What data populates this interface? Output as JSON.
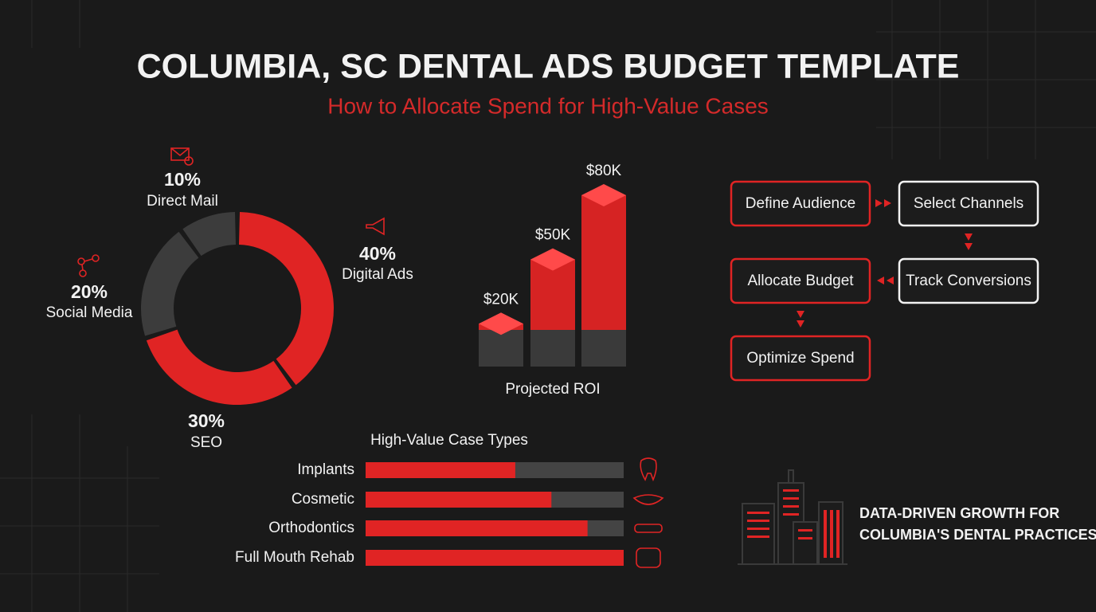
{
  "title": "COLUMBIA, SC DENTAL ADS BUDGET TEMPLATE",
  "subtitle": "How to Allocate Spend for High-Value Cases",
  "chart_data": [
    {
      "type": "donut",
      "categories": [
        "Digital Ads",
        "SEO",
        "Social Media",
        "Direct Mail"
      ],
      "values": [
        40,
        30,
        20,
        10
      ],
      "value_labels": [
        "40%",
        "30%",
        "20%",
        "10%"
      ],
      "colors": [
        "#e02424",
        "#e02424",
        "#3c3c3c",
        "#3c3c3c"
      ]
    },
    {
      "type": "bar3d",
      "x_label": "Projected ROI",
      "categories": [
        null,
        null,
        null
      ],
      "values": [
        20000,
        50000,
        80000
      ],
      "value_labels": [
        "$20K",
        "$50K",
        "$80K"
      ],
      "color": "#e02424"
    },
    {
      "type": "hbar",
      "title": "High-Value Case Types",
      "categories": [
        "Implants",
        "Cosmetic",
        "Orthodontics",
        "Full Mouth Rehab"
      ],
      "values": [
        58,
        72,
        86,
        100
      ],
      "xlim": [
        0,
        100
      ],
      "color": "#e02424"
    }
  ],
  "flow": {
    "steps": [
      "Define Audience",
      "Select Channels",
      "Track Conversions",
      "Allocate Budget",
      "Optimize Spend"
    ]
  },
  "footer": [
    "DATA-DRIVEN GROWTH FOR",
    "COLUMBIA'S DENTAL PRACTICES"
  ]
}
